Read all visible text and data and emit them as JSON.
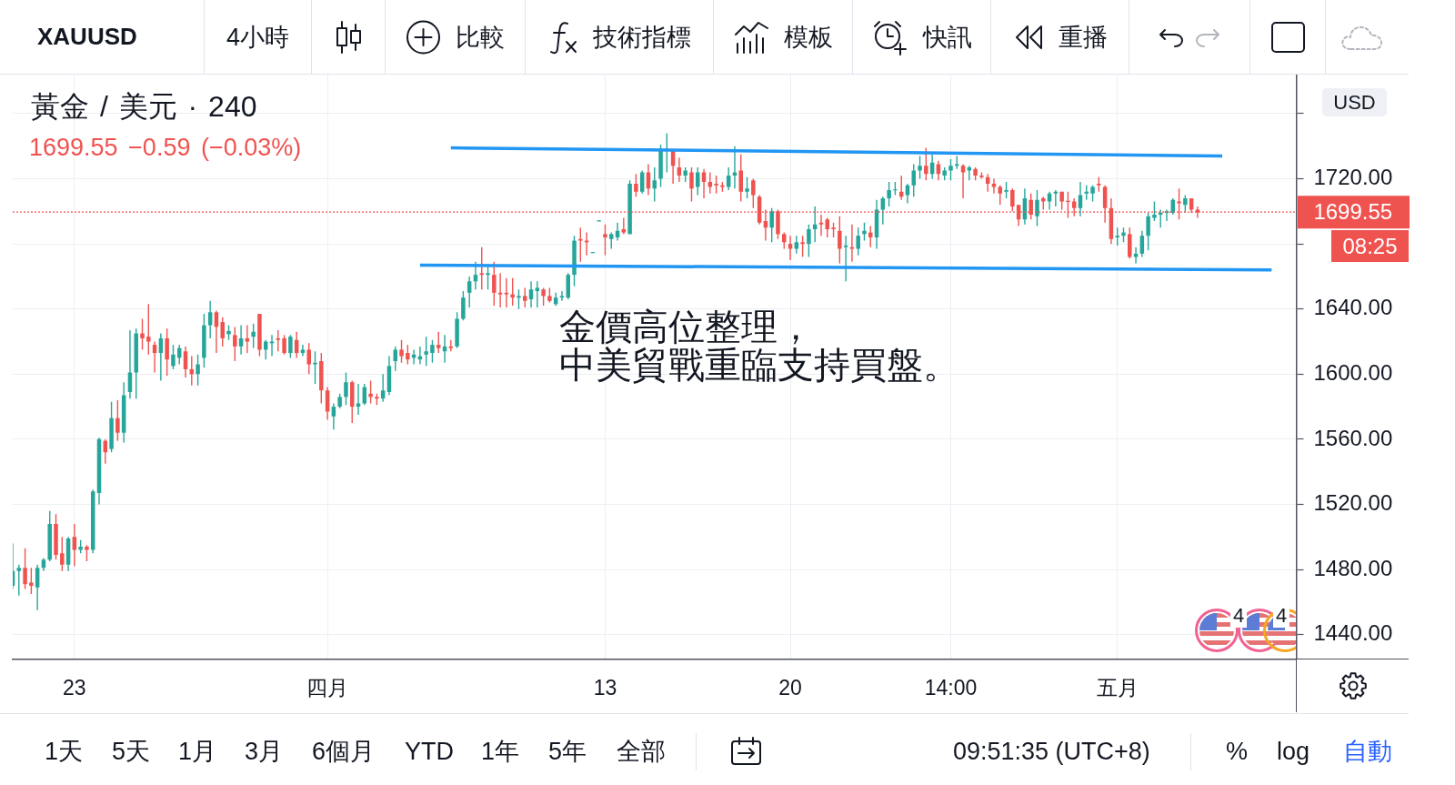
{
  "chart_data": {
    "type": "candlestick",
    "title": "黃金 / 美元 · 240",
    "subtitle": "1699.55 −0.59 (−0.03%)",
    "ylabel": "USD",
    "categories": [
      null,
      null,
      null,
      null,
      null,
      null,
      null,
      null,
      null,
      null,
      "23",
      null,
      null,
      null,
      null,
      null,
      null,
      null,
      null,
      null,
      null,
      null,
      null,
      null,
      null,
      null,
      null,
      null,
      null,
      null,
      null,
      null,
      null,
      null,
      null,
      null,
      null,
      null,
      null,
      null,
      null,
      null,
      null,
      null,
      null,
      null,
      null,
      null,
      null,
      null,
      null,
      "四月",
      null,
      null,
      null,
      null,
      null,
      null,
      null,
      null,
      null,
      null,
      null,
      null,
      null,
      null,
      null,
      null,
      null,
      null,
      null,
      null,
      null,
      null,
      null,
      null,
      null,
      null,
      null,
      null,
      null,
      null,
      null,
      null,
      null,
      null,
      null,
      null,
      null,
      null,
      null,
      null,
      null,
      null,
      null,
      null,
      "13",
      null,
      null,
      null,
      null,
      null,
      null,
      null,
      null,
      null,
      null,
      null,
      null,
      null,
      null,
      null,
      null,
      null,
      null,
      null,
      null,
      null,
      null,
      null,
      null,
      null,
      null,
      null,
      null,
      null,
      "20",
      null,
      null,
      null,
      null,
      null,
      null,
      null,
      null,
      null,
      null,
      null,
      null,
      null,
      null,
      null,
      null,
      null,
      null,
      null,
      null,
      null,
      null,
      null,
      null,
      null,
      "14:00",
      null,
      null,
      null,
      null,
      null,
      null,
      null,
      null,
      null,
      null,
      null,
      null,
      null,
      null,
      null,
      null,
      null,
      null,
      null,
      null,
      null,
      null,
      null,
      null,
      null,
      null,
      "五月",
      null,
      null,
      null,
      null,
      null,
      null,
      null,
      null,
      null,
      null,
      null,
      null,
      null,
      null,
      null,
      null,
      null,
      null,
      null,
      null,
      null,
      null,
      null,
      null,
      null,
      null,
      null,
      null,
      null
    ],
    "ohlc": [
      [
        1470,
        1496,
        1468,
        1479
      ],
      [
        1479,
        1483,
        1464,
        1481
      ],
      [
        1481,
        1493,
        1468,
        1471
      ],
      [
        1472,
        1481,
        1465,
        1470
      ],
      [
        1469,
        1483,
        1455,
        1481
      ],
      [
        1481,
        1487,
        1479,
        1486
      ],
      [
        1486,
        1516,
        1485,
        1508
      ],
      [
        1508,
        1514,
        1486,
        1489
      ],
      [
        1490,
        1500,
        1479,
        1483
      ],
      [
        1483,
        1500,
        1479,
        1499
      ],
      [
        1500,
        1508,
        1482,
        1492
      ],
      [
        1492,
        1498,
        1490,
        1494
      ],
      [
        1494,
        1495,
        1485,
        1492
      ],
      [
        1492,
        1529,
        1490,
        1528
      ],
      [
        1527,
        1561,
        1520,
        1560
      ],
      [
        1559,
        1560,
        1545,
        1552
      ],
      [
        1554,
        1583,
        1552,
        1573
      ],
      [
        1573,
        1584,
        1559,
        1564
      ],
      [
        1564,
        1595,
        1558,
        1587
      ],
      [
        1589,
        1627,
        1585,
        1601
      ],
      [
        1601,
        1628,
        1585,
        1625
      ],
      [
        1625,
        1634,
        1615,
        1622
      ],
      [
        1623,
        1643,
        1612,
        1620
      ],
      [
        1618,
        1620,
        1601,
        1613
      ],
      [
        1613,
        1625,
        1596,
        1622
      ],
      [
        1622,
        1628,
        1599,
        1609
      ],
      [
        1605,
        1618,
        1603,
        1612
      ],
      [
        1610,
        1618,
        1606,
        1616
      ],
      [
        1614,
        1617,
        1598,
        1603
      ],
      [
        1603,
        1611,
        1593,
        1600
      ],
      [
        1600,
        1612,
        1593,
        1606
      ],
      [
        1610,
        1637,
        1604,
        1630
      ],
      [
        1630,
        1645,
        1622,
        1638
      ],
      [
        1638,
        1639,
        1613,
        1629
      ],
      [
        1632,
        1635,
        1617,
        1622
      ],
      [
        1624.5,
        1630,
        1621,
        1626.5
      ],
      [
        1624,
        1629,
        1608,
        1617
      ],
      [
        1617,
        1630,
        1612,
        1622
      ],
      [
        1622,
        1630,
        1613,
        1620
      ],
      [
        1623,
        1631,
        1616,
        1626
      ],
      [
        1637,
        1637,
        1611,
        1615
      ],
      [
        1615,
        1621,
        1609,
        1620
      ],
      [
        1619,
        1624,
        1611,
        1620
      ],
      [
        1622,
        1627,
        1614,
        1621
      ],
      [
        1622,
        1624,
        1612,
        1613
      ],
      [
        1613,
        1624,
        1610,
        1623
      ],
      [
        1621,
        1626,
        1610,
        1613
      ],
      [
        1613,
        1618,
        1611,
        1615
      ],
      [
        1615,
        1619,
        1600,
        1606
      ],
      [
        1606,
        1614,
        1594,
        1607
      ],
      [
        1608,
        1613,
        1582,
        1590
      ],
      [
        1590,
        1592,
        1572,
        1577
      ],
      [
        1574,
        1582,
        1566,
        1580
      ],
      [
        1580,
        1588,
        1579,
        1586
      ],
      [
        1586,
        1601,
        1581,
        1595
      ],
      [
        1595,
        1596,
        1570,
        1580
      ],
      [
        1580,
        1594,
        1575,
        1582
      ],
      [
        1582,
        1594,
        1581,
        1592
      ],
      [
        1588,
        1596,
        1582,
        1586
      ],
      [
        1586,
        1588,
        1581,
        1585
      ],
      [
        1585,
        1600,
        1583,
        1590
      ],
      [
        1589,
        1611,
        1587,
        1605
      ],
      [
        1608,
        1617,
        1602,
        1615
      ],
      [
        1615,
        1621,
        1607,
        1611
      ],
      [
        1613,
        1618,
        1606,
        1609
      ],
      [
        1610,
        1615,
        1606,
        1612
      ],
      [
        1609,
        1617,
        1606,
        1611
      ],
      [
        1612,
        1623,
        1605,
        1614
      ],
      [
        1613,
        1621,
        1607,
        1618
      ],
      [
        1618,
        1626,
        1613,
        1616
      ],
      [
        1614,
        1624,
        1607,
        1617
      ],
      [
        1617,
        1621,
        1614,
        1616
      ],
      [
        1617,
        1638,
        1616,
        1634
      ],
      [
        1634,
        1651,
        1633,
        1647
      ],
      [
        1650,
        1660,
        1641,
        1657
      ],
      [
        1657,
        1669,
        1652,
        1661
      ],
      [
        1662,
        1678,
        1652,
        1661
      ],
      [
        1661,
        1666,
        1652,
        1662
      ],
      [
        1661,
        1669,
        1642,
        1650
      ],
      [
        1650,
        1662,
        1641,
        1649
      ],
      [
        1650,
        1659,
        1641,
        1649
      ],
      [
        1649,
        1659,
        1642,
        1647
      ],
      [
        1647,
        1652,
        1640,
        1648
      ],
      [
        1648,
        1653,
        1641,
        1645
      ],
      [
        1646,
        1657,
        1641,
        1652
      ],
      [
        1651,
        1657,
        1641,
        1653
      ],
      [
        1652,
        1653,
        1642,
        1648
      ],
      [
        1648,
        1653,
        1644,
        1645
      ],
      [
        1643,
        1650,
        1642,
        1647
      ],
      [
        1647,
        1651,
        1645,
        1648
      ],
      [
        1647,
        1662,
        1646,
        1661
      ],
      [
        1661,
        1685,
        1654,
        1682
      ],
      [
        1683,
        1690,
        1669,
        1682
      ],
      [
        1682,
        1687,
        1673,
        1681
      ],
      [
        1674.5,
        1675,
        1674.5,
        1675
      ],
      [
        1694,
        1694.5,
        1694,
        1694.5
      ],
      [
        1686,
        1692,
        1673,
        1684
      ],
      [
        1683,
        1687,
        1677,
        1686
      ],
      [
        1684,
        1693,
        1682,
        1688
      ],
      [
        1689,
        1696,
        1686,
        1687
      ],
      [
        1686,
        1719,
        1686,
        1717
      ],
      [
        1717,
        1723,
        1709,
        1712
      ],
      [
        1712,
        1725,
        1711,
        1724
      ],
      [
        1724,
        1729,
        1710,
        1714
      ],
      [
        1714,
        1727,
        1706,
        1719
      ],
      [
        1720,
        1741,
        1715,
        1737
      ],
      [
        1737,
        1748,
        1724,
        1738
      ],
      [
        1738,
        1738,
        1717,
        1728
      ],
      [
        1727,
        1733,
        1718,
        1722
      ],
      [
        1722,
        1727,
        1718,
        1725
      ],
      [
        1724,
        1727,
        1706,
        1714
      ],
      [
        1715,
        1727,
        1710,
        1724
      ],
      [
        1724,
        1726,
        1708,
        1718
      ],
      [
        1718,
        1724,
        1711,
        1715
      ],
      [
        1717,
        1722,
        1711,
        1716
      ],
      [
        1716,
        1718,
        1712,
        1715
      ],
      [
        1715,
        1727,
        1713,
        1722
      ],
      [
        1722,
        1740,
        1714,
        1724
      ],
      [
        1725,
        1735,
        1706,
        1712
      ],
      [
        1712,
        1721,
        1708,
        1714
      ],
      [
        1719,
        1720,
        1702,
        1710
      ],
      [
        1709,
        1710,
        1692,
        1693
      ],
      [
        1694,
        1701,
        1682,
        1690
      ],
      [
        1690,
        1702,
        1681,
        1700
      ],
      [
        1700,
        1701,
        1683,
        1686
      ],
      [
        1686,
        1687,
        1677,
        1681
      ],
      [
        1680,
        1685,
        1670,
        1677
      ],
      [
        1677,
        1685,
        1674,
        1681
      ],
      [
        1681,
        1685,
        1672,
        1680
      ],
      [
        1680,
        1692,
        1672,
        1689
      ],
      [
        1689,
        1703,
        1681,
        1692
      ],
      [
        1693,
        1698,
        1685,
        1692
      ],
      [
        1695,
        1696,
        1684,
        1689
      ],
      [
        1690,
        1693,
        1684,
        1689
      ],
      [
        1688,
        1697,
        1668,
        1677
      ],
      [
        1678,
        1685,
        1657,
        1679
      ],
      [
        1678,
        1692,
        1669,
        1677
      ],
      [
        1677,
        1690,
        1673,
        1685
      ],
      [
        1686,
        1693,
        1682,
        1688
      ],
      [
        1687,
        1691,
        1678,
        1684
      ],
      [
        1684,
        1707,
        1677,
        1701
      ],
      [
        1701,
        1709,
        1692,
        1708
      ],
      [
        1708,
        1718,
        1703,
        1713
      ],
      [
        1713,
        1718,
        1710,
        1713.5
      ],
      [
        1712,
        1722,
        1707,
        1709
      ],
      [
        1710,
        1717,
        1705,
        1716
      ],
      [
        1716,
        1729,
        1709,
        1725
      ],
      [
        1725,
        1734,
        1720,
        1728
      ],
      [
        1728,
        1739,
        1719,
        1723
      ],
      [
        1723,
        1735,
        1720,
        1730
      ],
      [
        1729,
        1731,
        1719,
        1723
      ],
      [
        1722,
        1727,
        1719,
        1725
      ],
      [
        1725,
        1732,
        1719,
        1728
      ],
      [
        1728,
        1734,
        1726,
        1729
      ],
      [
        1728,
        1729,
        1708,
        1724
      ],
      [
        1725,
        1728,
        1719,
        1727
      ],
      [
        1726,
        1727,
        1719,
        1722
      ],
      [
        1722,
        1724,
        1720,
        1721
      ],
      [
        1721,
        1723,
        1712,
        1717
      ],
      [
        1717,
        1720,
        1711,
        1715
      ],
      [
        1715,
        1716,
        1704,
        1711
      ],
      [
        1712,
        1718,
        1708,
        1713
      ],
      [
        1713,
        1714,
        1700,
        1703
      ],
      [
        1704,
        1704,
        1691,
        1695
      ],
      [
        1695,
        1714,
        1692,
        1708
      ],
      [
        1707,
        1711,
        1695,
        1698
      ],
      [
        1697,
        1713,
        1691,
        1707
      ],
      [
        1708,
        1709,
        1701,
        1706
      ],
      [
        1706,
        1712,
        1701,
        1711
      ],
      [
        1711,
        1713,
        1703,
        1712
      ],
      [
        1712,
        1712,
        1701,
        1706
      ],
      [
        1706.5,
        1712,
        1696,
        1706
      ],
      [
        1706,
        1708,
        1697,
        1702
      ],
      [
        1702,
        1718,
        1697,
        1710
      ],
      [
        1711,
        1716,
        1707,
        1712
      ],
      [
        1711,
        1716,
        1706,
        1715
      ],
      [
        1717,
        1721,
        1712,
        1716
      ],
      [
        1715,
        1716,
        1693,
        1702
      ],
      [
        1702,
        1708,
        1680,
        1683
      ],
      [
        1684,
        1690,
        1679,
        1685
      ],
      [
        1685,
        1690,
        1681,
        1687
      ],
      [
        1686,
        1690,
        1671,
        1672
      ],
      [
        1672,
        1678,
        1668,
        1674
      ],
      [
        1674,
        1688,
        1672,
        1685
      ],
      [
        1685,
        1699,
        1676,
        1697
      ],
      [
        1696,
        1706,
        1694,
        1698
      ],
      [
        1698,
        1701,
        1690,
        1699
      ],
      [
        1699,
        1701,
        1694,
        1700
      ],
      [
        1699,
        1708,
        1698,
        1707
      ],
      [
        1706,
        1714,
        1695,
        1705
      ],
      [
        1704,
        1710,
        1699,
        1708
      ],
      [
        1708,
        1708,
        1699,
        1701
      ],
      [
        1701,
        1703,
        1696,
        1699.55
      ],
      null,
      null,
      null,
      null,
      null,
      null,
      null,
      null,
      null,
      null,
      null,
      null,
      null,
      null,
      null,
      null
    ],
    "colors": [
      "#26a69a",
      "#26a69a",
      "#ef5350",
      "#ef5350",
      "#26a69a",
      "#26a69a",
      "#26a69a",
      "#ef5350",
      "#ef5350",
      "#26a69a",
      "#ef5350",
      "#26a69a",
      "#ef5350",
      "#26a69a",
      "#26a69a",
      "#ef5350",
      "#26a69a",
      "#ef5350",
      "#26a69a",
      "#26a69a",
      "#26a69a",
      "#ef5350",
      "#ef5350",
      "#ef5350",
      "#26a69a",
      "#ef5350",
      "#26a69a",
      "#26a69a",
      "#ef5350",
      "#ef5350",
      "#26a69a",
      "#26a69a",
      "#26a69a",
      "#ef5350",
      "#ef5350",
      "#26a69a",
      "#ef5350",
      "#26a69a",
      "#ef5350",
      "#26a69a",
      "#ef5350",
      "#26a69a",
      "#26a69a",
      "#ef5350",
      "#ef5350",
      "#26a69a",
      "#ef5350",
      "#26a69a",
      "#ef5350",
      "#26a69a",
      "#ef5350",
      "#ef5350",
      "#26a69a",
      "#26a69a",
      "#26a69a",
      "#ef5350",
      "#26a69a",
      "#26a69a",
      "#ef5350",
      "#ef5350",
      "#26a69a",
      "#26a69a",
      "#26a69a",
      "#ef5350",
      "#ef5350",
      "#26a69a",
      "#26a69a",
      "#26a69a",
      "#26a69a",
      "#ef5350",
      "#26a69a",
      "#ef5350",
      "#26a69a",
      "#26a69a",
      "#26a69a",
      "#26a69a",
      "#ef5350",
      "#26a69a",
      "#ef5350",
      "#ef5350",
      "#ef5350",
      "#ef5350",
      "#26a69a",
      "#ef5350",
      "#26a69a",
      "#26a69a",
      "#ef5350",
      "#ef5350",
      "#26a69a",
      "#26a69a",
      "#26a69a",
      "#26a69a",
      "#ef5350",
      "#ef5350",
      "#26a69a",
      "#26a69a",
      "#ef5350",
      "#26a69a",
      "#26a69a",
      "#ef5350",
      "#26a69a",
      "#ef5350",
      "#26a69a",
      "#ef5350",
      "#26a69a",
      "#26a69a",
      "#26a69a",
      "#ef5350",
      "#ef5350",
      "#26a69a",
      "#ef5350",
      "#26a69a",
      "#ef5350",
      "#ef5350",
      "#ef5350",
      "#ef5350",
      "#26a69a",
      "#26a69a",
      "#ef5350",
      "#26a69a",
      "#ef5350",
      "#ef5350",
      "#ef5350",
      "#26a69a",
      "#ef5350",
      "#ef5350",
      "#ef5350",
      "#26a69a",
      "#ef5350",
      "#26a69a",
      "#26a69a",
      "#ef5350",
      "#ef5350",
      "#ef5350",
      "#ef5350",
      "#26a69a",
      "#ef5350",
      "#26a69a",
      "#26a69a",
      "#ef5350",
      "#26a69a",
      "#26a69a",
      "#26a69a",
      "#26a69a",
      "#ef5350",
      "#26a69a",
      "#26a69a",
      "#26a69a",
      "#ef5350",
      "#26a69a",
      "#ef5350",
      "#26a69a",
      "#26a69a",
      "#26a69a",
      "#ef5350",
      "#26a69a",
      "#ef5350",
      "#ef5350",
      "#ef5350",
      "#ef5350",
      "#ef5350",
      "#26a69a",
      "#ef5350",
      "#ef5350",
      "#26a69a",
      "#ef5350",
      "#26a69a",
      "#ef5350",
      "#26a69a",
      "#26a69a",
      "#ef5350",
      "#ef5350",
      "#ef5350",
      "#26a69a",
      "#26a69a",
      "#26a69a",
      "#ef5350",
      "#ef5350",
      "#ef5350",
      "#26a69a",
      "#26a69a",
      "#ef5350",
      "#26a69a",
      "#26a69a",
      "#26a69a",
      "#26a69a",
      "#26a69a",
      "#26a69a",
      "#26a69a",
      "#ef5350",
      "#26a69a",
      "#ef5350",
      "#ef5350",
      null,
      null,
      null,
      null,
      null,
      null,
      null,
      null,
      null,
      null,
      null,
      null,
      null,
      null,
      null,
      null
    ],
    "series": [
      {
        "type": "line",
        "color": "#2196f3",
        "values": [
          null,
          null,
          null,
          null,
          null,
          null,
          null,
          null,
          null,
          null,
          null,
          null,
          null,
          null,
          null,
          null,
          null,
          null,
          null,
          null,
          null,
          null,
          null,
          null,
          null,
          null,
          null,
          null,
          null,
          null,
          null,
          null,
          null,
          null,
          null,
          null,
          null,
          null,
          null,
          null,
          null,
          null,
          null,
          null,
          null,
          null,
          null,
          null,
          null,
          null,
          null,
          null,
          null,
          null,
          null,
          null,
          null,
          null,
          null,
          null,
          null,
          null,
          null,
          null,
          null,
          null,
          null,
          null,
          null,
          null,
          null,
          1739,
          null,
          null,
          null,
          null,
          null,
          null,
          null,
          null,
          null,
          null,
          null,
          null,
          null,
          null,
          null,
          null,
          null,
          null,
          null,
          null,
          null,
          null,
          null,
          null,
          null,
          null,
          null,
          null,
          null,
          null,
          null,
          null,
          null,
          null,
          null,
          null,
          null,
          null,
          null,
          null,
          null,
          null,
          null,
          null,
          null,
          null,
          null,
          null,
          null,
          null,
          null,
          null,
          null,
          null,
          null,
          null,
          null,
          null,
          null,
          null,
          null,
          null,
          null,
          null,
          null,
          null,
          null,
          null,
          null,
          null,
          null,
          null,
          null,
          null,
          null,
          null,
          null,
          null,
          null,
          null,
          null,
          null,
          null,
          null,
          null,
          null,
          null,
          null,
          null,
          null,
          null,
          null,
          null,
          null,
          null,
          null,
          null,
          null,
          null,
          null,
          null,
          null,
          null,
          null,
          null,
          null,
          null,
          null,
          null,
          null,
          null,
          null,
          null,
          null,
          null,
          null,
          null,
          null,
          null,
          null,
          null,
          null,
          null,
          null,
          1734,
          null,
          null,
          null,
          null,
          null,
          null,
          null,
          null,
          null,
          null,
          null,
          null
        ]
      },
      {
        "type": "line",
        "color": "#2196f3",
        "values": [
          null,
          null,
          null,
          null,
          null,
          null,
          null,
          null,
          null,
          null,
          null,
          null,
          null,
          null,
          null,
          null,
          null,
          null,
          null,
          null,
          null,
          null,
          null,
          null,
          null,
          null,
          null,
          null,
          null,
          null,
          null,
          null,
          null,
          null,
          null,
          null,
          null,
          null,
          null,
          null,
          null,
          null,
          null,
          null,
          null,
          null,
          null,
          null,
          null,
          null,
          null,
          null,
          null,
          null,
          null,
          null,
          null,
          null,
          null,
          null,
          null,
          null,
          null,
          null,
          null,
          null,
          1667,
          null,
          null,
          null,
          null,
          null,
          null,
          null,
          null,
          null,
          null,
          null,
          null,
          null,
          null,
          null,
          null,
          null,
          null,
          null,
          null,
          null,
          null,
          null,
          null,
          null,
          null,
          null,
          null,
          null,
          null,
          null,
          null,
          null,
          null,
          null,
          null,
          null,
          null,
          null,
          null,
          null,
          null,
          null,
          null,
          null,
          null,
          null,
          null,
          null,
          null,
          null,
          null,
          null,
          null,
          null,
          null,
          null,
          null,
          null,
          null,
          null,
          null,
          null,
          null,
          null,
          null,
          null,
          null,
          null,
          null,
          null,
          null,
          null,
          null,
          null,
          null,
          null,
          null,
          null,
          null,
          null,
          null,
          null,
          null,
          null,
          null,
          null,
          null,
          null,
          null,
          null,
          null,
          null,
          null,
          null,
          null,
          null,
          null,
          null,
          null,
          null,
          null,
          null,
          null,
          null,
          null,
          null,
          null,
          null,
          null,
          null,
          null,
          null,
          null,
          null,
          null,
          null,
          null,
          null,
          null,
          null,
          null,
          null,
          null,
          null,
          null,
          null,
          null,
          null,
          null,
          null,
          null,
          null,
          null,
          null,
          null,
          null,
          1664,
          null,
          null,
          null,
          null
        ]
      }
    ],
    "ylim": [
      1425,
      1784
    ],
    "yticks": [
      {
        "value": 1440,
        "label": "1440.00"
      },
      {
        "value": 1480,
        "label": "1480.00"
      },
      {
        "value": 1520,
        "label": "1520.00"
      },
      {
        "value": 1560,
        "label": "1560.00"
      },
      {
        "value": 1600,
        "label": "1600.00"
      },
      {
        "value": 1640,
        "label": "1640.00"
      },
      {
        "value": 1680,
        "label": null
      },
      {
        "value": 1720,
        "label": "1720.00"
      },
      {
        "value": 1760,
        "label": null
      }
    ],
    "grid": true,
    "ref_lines": [
      {
        "axis": "y",
        "value": 1699.55,
        "label": "1699.55",
        "color": "#ef5350",
        "line_style": "dotted"
      }
    ],
    "annotations": [
      "金價高位整理，",
      "中美貿戰重臨支持買盤。",
      "08:25",
      "XAUUSD",
      "4小時",
      "比較",
      "技術指標",
      "模板",
      "快訊",
      "重播",
      "1天",
      "5天",
      "1月",
      "3月",
      "6個月",
      "YTD",
      "1年",
      "5年",
      "全部",
      "09:51:35 (UTC+8)",
      "%",
      "log",
      "自動",
      "4",
      "4"
    ]
  }
}
